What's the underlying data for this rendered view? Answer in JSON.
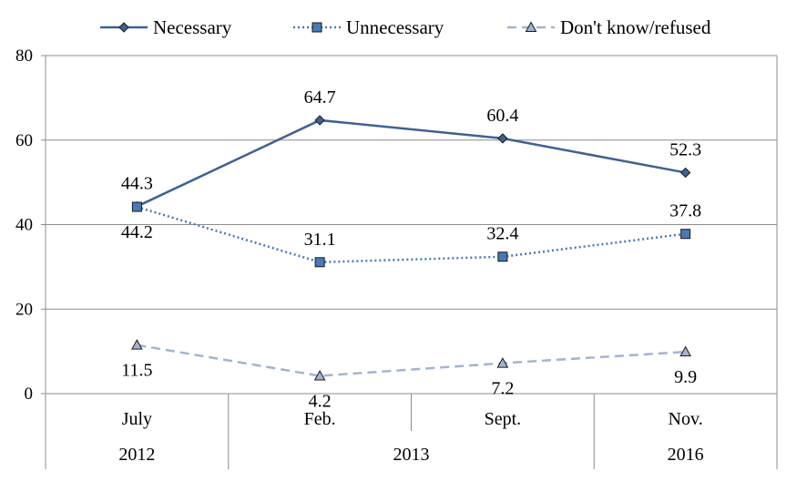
{
  "chart_data": {
    "type": "line",
    "categories": [
      "July",
      "Feb.",
      "Sept.",
      "Nov."
    ],
    "category_groups": [
      {
        "label": "2012",
        "span": [
          0,
          0
        ]
      },
      {
        "label": "2013",
        "span": [
          1,
          2
        ]
      },
      {
        "label": "2016",
        "span": [
          3,
          3
        ]
      }
    ],
    "ylim": [
      0,
      80
    ],
    "yticks": [
      0,
      20,
      40,
      60,
      80
    ],
    "ytick_labels": [
      "0",
      "20",
      "40",
      "60",
      "80"
    ],
    "grid": "horizontal",
    "legend": "top",
    "series": [
      {
        "name": "Necessary",
        "values": [
          44.3,
          64.7,
          60.4,
          52.3
        ],
        "labels": [
          "44.3",
          "64.7",
          "60.4",
          "52.3"
        ],
        "color": "#3f6191",
        "line_style": "solid",
        "marker": "diamond"
      },
      {
        "name": "Unnecessary",
        "values": [
          44.2,
          31.1,
          32.4,
          37.8
        ],
        "labels": [
          "44.2",
          "31.1",
          "32.4",
          "37.8"
        ],
        "color": "#4a79b4",
        "line_style": "dotted",
        "marker": "square"
      },
      {
        "name": "Don't know/refused",
        "values": [
          11.5,
          4.2,
          7.2,
          9.9
        ],
        "labels": [
          "11.5",
          "4.2",
          "7.2",
          "9.9"
        ],
        "color": "#a3b3cf",
        "line_style": "dashed",
        "marker": "triangle"
      }
    ]
  }
}
